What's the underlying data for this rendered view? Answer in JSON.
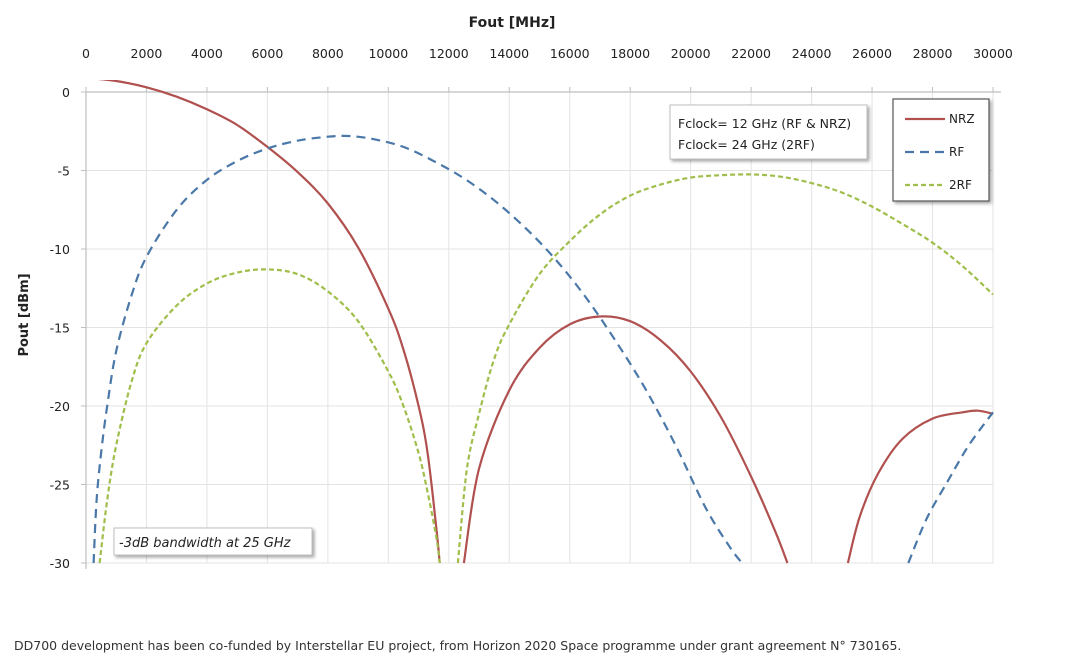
{
  "chart_data": {
    "type": "line",
    "xlabel": "Fout [MHz]",
    "ylabel": "Pout [dBm]",
    "xlim": [
      0,
      30000
    ],
    "ylim": [
      -30,
      0
    ],
    "x_ticks": [
      0,
      2000,
      4000,
      6000,
      8000,
      10000,
      12000,
      14000,
      16000,
      18000,
      20000,
      22000,
      24000,
      26000,
      28000,
      30000
    ],
    "y_ticks": [
      0,
      -5,
      -10,
      -15,
      -20,
      -25,
      -30
    ],
    "grid": true,
    "legend_position": "top-right",
    "x_axis_position": "top",
    "annotations": {
      "fclock_line1": "Fclock= 12 GHz (RF & NRZ)",
      "fclock_line2": "Fclock= 24 GHz (2RF)",
      "bandwidth_note": "-3dB bandwidth at 25 GHz"
    },
    "series": [
      {
        "name": "NRZ",
        "color": "#b0504f",
        "style": "solid",
        "x": [
          0,
          1000,
          2000,
          3000,
          4000,
          5000,
          6000,
          7000,
          8000,
          9000,
          10000,
          10500,
          11000,
          11300,
          11600,
          11700
        ],
        "y": [
          0.9,
          0.7,
          0.3,
          -0.3,
          -1.1,
          -2.1,
          -3.5,
          -5.1,
          -7.1,
          -9.9,
          -13.8,
          -16.4,
          -20.0,
          -23.0,
          -28.0,
          -30.0
        ]
      },
      {
        "name": "NRZ",
        "color": "#b0504f",
        "style": "solid",
        "x": [
          12500,
          13000,
          14000,
          15000,
          16000,
          17000,
          18000,
          19000,
          20000,
          21000,
          22000,
          22800,
          23200
        ],
        "y": [
          -30.0,
          -24.0,
          -19.0,
          -16.3,
          -14.8,
          -14.3,
          -14.6,
          -15.8,
          -17.8,
          -20.7,
          -24.5,
          -28.0,
          -30.0
        ]
      },
      {
        "name": "NRZ",
        "color": "#b0504f",
        "style": "solid",
        "x": [
          25200,
          25600,
          26200,
          27000,
          28000,
          29000,
          29500,
          30000
        ],
        "y": [
          -30.0,
          -27.0,
          -24.3,
          -22.1,
          -20.8,
          -20.4,
          -20.3,
          -20.5
        ]
      },
      {
        "name": "RF",
        "color": "#4a78a8",
        "style": "dashed",
        "x": [
          250,
          350,
          500,
          700,
          1000,
          1500,
          2000,
          3000,
          4000,
          5000,
          6000,
          7000,
          8000,
          8700,
          9500,
          10500,
          11500,
          12500,
          13500,
          14500,
          15500,
          16500,
          17500,
          18500,
          19500,
          20500,
          21300,
          21700
        ],
        "y": [
          -30.0,
          -26.0,
          -23.0,
          -20.0,
          -16.5,
          -13.0,
          -10.5,
          -7.5,
          -5.6,
          -4.4,
          -3.6,
          -3.1,
          -2.85,
          -2.8,
          -3.0,
          -3.5,
          -4.4,
          -5.5,
          -6.9,
          -8.6,
          -10.6,
          -13.0,
          -15.8,
          -18.9,
          -22.5,
          -26.5,
          -29.0,
          -30.0
        ]
      },
      {
        "name": "RF",
        "color": "#4a78a8",
        "style": "dashed",
        "x": [
          27200,
          27800,
          28500,
          29200,
          30000
        ],
        "y": [
          -30.0,
          -27.2,
          -24.8,
          -22.5,
          -20.4
        ]
      },
      {
        "name": "2RF",
        "color": "#9fbe4a",
        "style": "dashed",
        "x": [
          450,
          700,
          1000,
          1500,
          2000,
          3000,
          4000,
          5000,
          6000,
          7000,
          8000,
          9000,
          10000,
          10500,
          11000,
          11300,
          11600,
          11700
        ],
        "y": [
          -30.0,
          -26.0,
          -22.5,
          -18.5,
          -16.0,
          -13.6,
          -12.2,
          -11.5,
          -11.3,
          -11.6,
          -12.7,
          -14.6,
          -17.8,
          -20.0,
          -23.0,
          -25.5,
          -28.5,
          -30.0
        ]
      },
      {
        "name": "2RF",
        "color": "#9fbe4a",
        "style": "dashed",
        "x": [
          12300,
          12600,
          13000,
          13500,
          14000,
          15000,
          16000,
          17000,
          18000,
          19000,
          20000,
          21000,
          22000,
          23000,
          24000,
          25000,
          26000,
          27000,
          28000,
          29000,
          30000
        ],
        "y": [
          -30.0,
          -24.0,
          -20.5,
          -17.0,
          -14.8,
          -11.6,
          -9.5,
          -7.8,
          -6.6,
          -5.9,
          -5.45,
          -5.3,
          -5.25,
          -5.4,
          -5.8,
          -6.4,
          -7.3,
          -8.4,
          -9.6,
          -11.1,
          -12.9
        ]
      }
    ]
  },
  "legend": {
    "items": [
      {
        "label": "NRZ",
        "color": "#b0504f",
        "dash": ""
      },
      {
        "label": "RF",
        "color": "#4a78a8",
        "dash": "9 6"
      },
      {
        "label": "2RF",
        "color": "#9fbe4a",
        "dash": "5 3"
      }
    ]
  },
  "footer": {
    "caption": "DD700 development has been co-funded by Interstellar EU project, from Horizon 2020 Space programme under grant agreement N° 730165."
  }
}
